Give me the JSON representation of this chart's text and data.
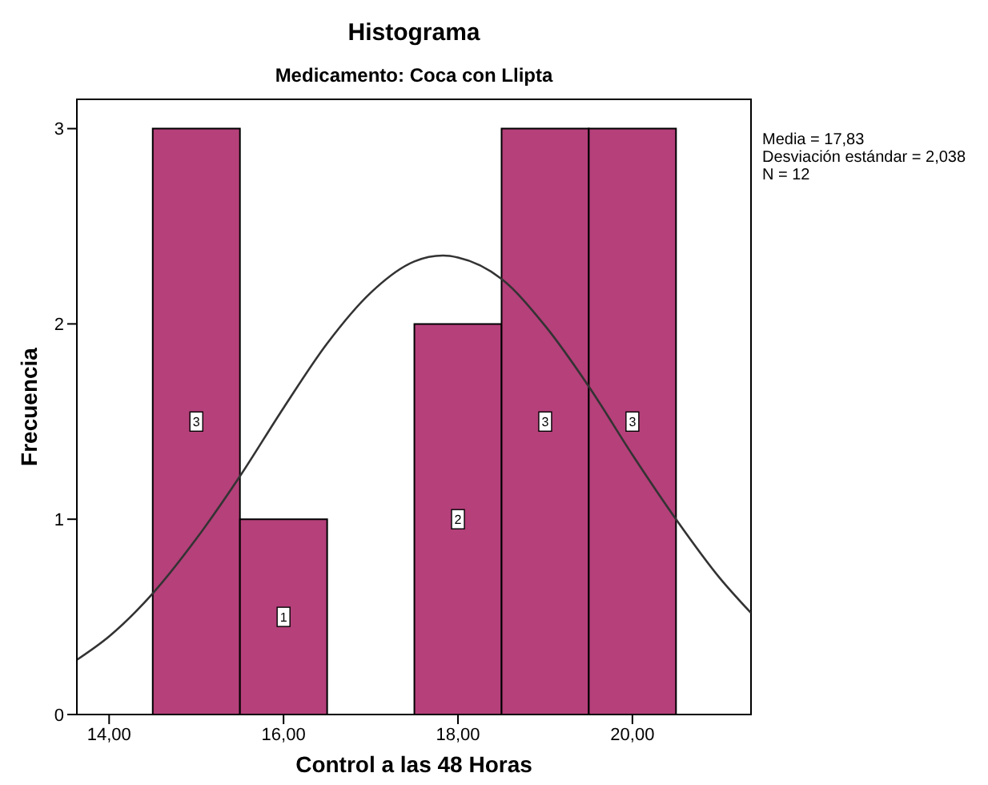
{
  "chart_data": {
    "type": "histogram",
    "title": "Histograma",
    "subtitle": "Medicamento: Coca con Llipta",
    "xlabel": "Control a las 48 Horas",
    "ylabel": "Frecuencia",
    "bins": [
      14.5,
      15.5,
      16.5,
      17.5,
      18.5,
      19.5,
      20.5
    ],
    "values": [
      3,
      1,
      0,
      2,
      3,
      3
    ],
    "value_labels": [
      "3",
      "1",
      null,
      "2",
      "3",
      "3"
    ],
    "color": "#b5407a",
    "series": [
      {
        "type": "line",
        "color": "#333333",
        "x": [
          13.63,
          14,
          14.5,
          15,
          15.5,
          16,
          16.5,
          17,
          17.5,
          17.83,
          18,
          18.5,
          19,
          19.5,
          20,
          20.5,
          21,
          21.36
        ],
        "values": [
          0.28,
          0.4,
          0.62,
          0.9,
          1.22,
          1.57,
          1.9,
          2.16,
          2.32,
          2.35,
          2.34,
          2.23,
          1.99,
          1.68,
          1.33,
          1.0,
          0.7,
          0.52
        ]
      }
    ],
    "xlim": [
      13.63,
      21.36
    ],
    "xticks": [
      {
        "value": 14,
        "label": "14,00"
      },
      {
        "value": 16,
        "label": "16,00"
      },
      {
        "value": 18,
        "label": "18,00"
      },
      {
        "value": 20,
        "label": "20,00"
      }
    ],
    "ylim": [
      0,
      3.15
    ],
    "yticks": [
      0,
      1,
      2,
      3
    ],
    "annotations": [
      "Media = 17,83",
      "Desviación estándar = 2,038",
      "N = 12"
    ]
  }
}
